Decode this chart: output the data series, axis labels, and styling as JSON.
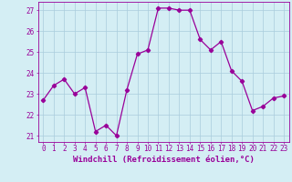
{
  "x": [
    0,
    1,
    2,
    3,
    4,
    5,
    6,
    7,
    8,
    9,
    10,
    11,
    12,
    13,
    14,
    15,
    16,
    17,
    18,
    19,
    20,
    21,
    22,
    23
  ],
  "y": [
    22.7,
    23.4,
    23.7,
    23.0,
    23.3,
    21.2,
    21.5,
    21.0,
    23.2,
    24.9,
    25.1,
    27.1,
    27.1,
    27.0,
    27.0,
    25.6,
    25.1,
    25.5,
    24.1,
    23.6,
    22.2,
    22.4,
    22.8,
    22.9
  ],
  "line_color": "#990099",
  "marker": "D",
  "markersize": 2.2,
  "linewidth": 0.9,
  "xlabel": "Windchill (Refroidissement éolien,°C)",
  "xlabel_fontsize": 6.5,
  "ylabel_ticks": [
    21,
    22,
    23,
    24,
    25,
    26,
    27
  ],
  "xlim": [
    -0.5,
    23.5
  ],
  "ylim": [
    20.7,
    27.4
  ],
  "bg_color": "#d4eef4",
  "grid_color": "#aaccdd",
  "tick_color": "#990099",
  "tick_fontsize": 5.5,
  "figure_bg": "#d4eef4"
}
